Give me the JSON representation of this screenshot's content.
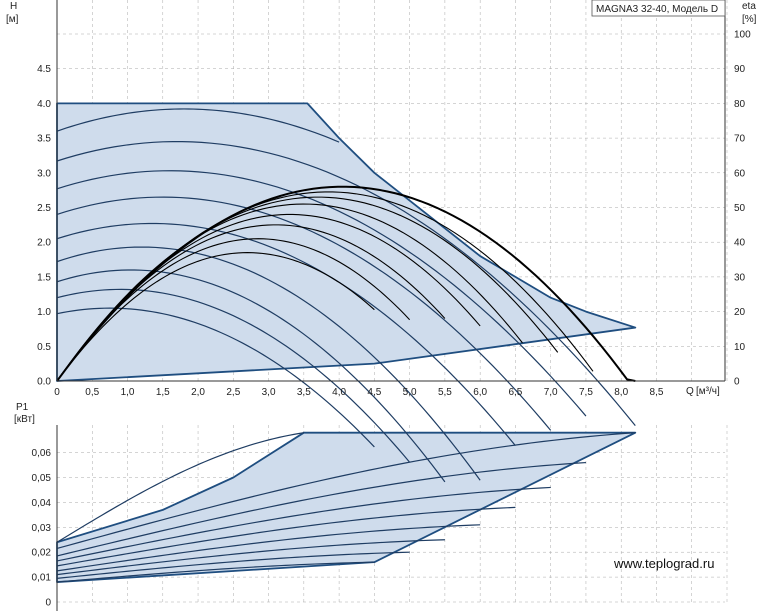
{
  "title": "MAGNA3 32-40, Модель D",
  "watermark": "www.teplograd.ru",
  "colors": {
    "envelope": "#1f4e80",
    "fill": "#cfdcec",
    "curve": "#1f3d63",
    "eta": "#000000",
    "grid": "#aaaaaa"
  },
  "chart_data": [
    {
      "type": "line",
      "name": "head",
      "ylabel": "H",
      "yunit": "[м]",
      "xlabel": "Q",
      "xunit": "[м³/ч]",
      "x_ticks": [
        "0",
        "0,5",
        "1,0",
        "1,5",
        "2,0",
        "2,5",
        "3,0",
        "3,5",
        "4,0",
        "4,5",
        "5,0",
        "5,5",
        "6,0",
        "6,5",
        "7,0",
        "7,5",
        "8,0",
        "8,5"
      ],
      "y_ticks": [
        "0.0",
        "0.5",
        "1.0",
        "1.5",
        "2.0",
        "2.5",
        "3.0",
        "3.5",
        "4.0",
        "4.5"
      ],
      "xlim": [
        0,
        9.5
      ],
      "ylim": [
        0,
        5.5
      ],
      "envelope": [
        [
          0,
          4.0
        ],
        [
          3.55,
          4.0
        ],
        [
          4.0,
          3.5
        ],
        [
          4.5,
          3.0
        ],
        [
          5.0,
          2.6
        ],
        [
          5.5,
          2.2
        ],
        [
          6.0,
          1.8
        ],
        [
          6.5,
          1.5
        ],
        [
          7.0,
          1.2
        ],
        [
          7.5,
          1.0
        ],
        [
          8.2,
          0.77
        ],
        [
          4.5,
          0.25
        ],
        [
          0,
          0
        ]
      ],
      "head_curves": [
        {
          "h0": 0.97,
          "hmax": 1.05,
          "xpeak": 0.75,
          "xend": 4.5,
          "yend": 0.25
        },
        {
          "h0": 1.2,
          "hmax": 1.32,
          "xpeak": 0.9,
          "xend": 5.0,
          "yend": 0.28
        },
        {
          "h0": 1.43,
          "hmax": 1.6,
          "xpeak": 1.05,
          "xend": 5.5,
          "yend": 0.35
        },
        {
          "h0": 1.72,
          "hmax": 1.93,
          "xpeak": 1.2,
          "xend": 6.0,
          "yend": 0.4
        },
        {
          "h0": 2.05,
          "hmax": 2.27,
          "xpeak": 1.35,
          "xend": 6.5,
          "yend": 0.48
        },
        {
          "h0": 2.4,
          "hmax": 2.65,
          "xpeak": 1.5,
          "xend": 7.0,
          "yend": 0.55
        },
        {
          "h0": 2.77,
          "hmax": 3.03,
          "xpeak": 1.6,
          "xend": 7.5,
          "yend": 0.64
        },
        {
          "h0": 3.17,
          "hmax": 3.45,
          "xpeak": 1.7,
          "xend": 8.2,
          "yend": 0.77
        },
        {
          "h0": 3.6,
          "hmax": 3.92,
          "xpeak": 1.8,
          "xend": 4.0,
          "yend": 3.5
        }
      ]
    },
    {
      "type": "line",
      "name": "efficiency",
      "ylabel": "eta",
      "yunit": "[%]",
      "y_ticks": [
        "0",
        "10",
        "20",
        "30",
        "40",
        "50",
        "60",
        "70",
        "80",
        "90",
        "100"
      ],
      "ylim": [
        0,
        110
      ],
      "eta_curves": [
        {
          "peak": 37,
          "xpeak": 2.7,
          "xend": 4.5,
          "yend": 17
        },
        {
          "peak": 41,
          "xpeak": 2.85,
          "xend": 5.0,
          "yend": 19
        },
        {
          "peak": 45,
          "xpeak": 3.1,
          "xend": 5.5,
          "yend": 21
        },
        {
          "peak": 48,
          "xpeak": 3.3,
          "xend": 6.0,
          "yend": 22
        },
        {
          "peak": 51,
          "xpeak": 3.5,
          "xend": 6.6,
          "yend": 23
        },
        {
          "peak": 53,
          "xpeak": 3.7,
          "xend": 7.1,
          "yend": 24
        },
        {
          "peak": 54.5,
          "xpeak": 3.85,
          "xend": 7.6,
          "yend": 25
        },
        {
          "peak": 56,
          "xpeak": 4.05,
          "xend": 8.2,
          "yend": 25
        }
      ]
    },
    {
      "type": "line",
      "name": "power",
      "ylabel": "P1",
      "yunit": "[кВт]",
      "y_ticks": [
        "0",
        "0,01",
        "0,02",
        "0,03",
        "0,04",
        "0,05",
        "0,06"
      ],
      "ylim": [
        0,
        0.069
      ],
      "envelope": [
        [
          0,
          0.024
        ],
        [
          1.5,
          0.037
        ],
        [
          2.5,
          0.05
        ],
        [
          3.5,
          0.068
        ],
        [
          8.2,
          0.068
        ],
        [
          4.5,
          0.016
        ],
        [
          0,
          0.008
        ]
      ],
      "power_curves": [
        {
          "p0": 0.008,
          "xend": 4.5,
          "pend": 0.016
        },
        {
          "p0": 0.0095,
          "xend": 5.0,
          "pend": 0.02
        },
        {
          "p0": 0.011,
          "xend": 5.5,
          "pend": 0.025
        },
        {
          "p0": 0.0125,
          "xend": 6.0,
          "pend": 0.031
        },
        {
          "p0": 0.0145,
          "xend": 6.5,
          "pend": 0.038
        },
        {
          "p0": 0.0165,
          "xend": 7.0,
          "pend": 0.046
        },
        {
          "p0": 0.0185,
          "xend": 7.5,
          "pend": 0.056
        },
        {
          "p0": 0.0215,
          "xend": 8.2,
          "pend": 0.068
        },
        {
          "p0": 0.024,
          "xend": 3.5,
          "pend": 0.068
        }
      ]
    }
  ]
}
